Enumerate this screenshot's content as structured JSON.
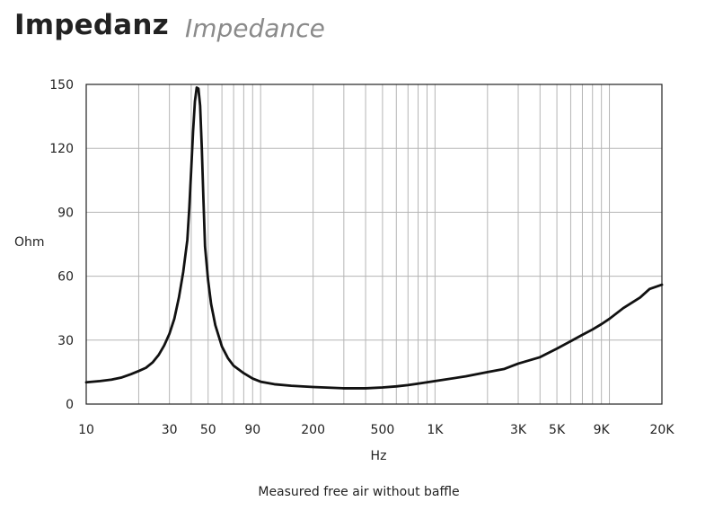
{
  "header": {
    "title": "Impedanz",
    "subtitle": "Impedance"
  },
  "caption": "Measured free air without baffle",
  "chart_data": {
    "type": "line",
    "title": "Impedanz",
    "subtitle": "Impedance",
    "xlabel": "Hz",
    "ylabel": "Ohm",
    "x_scale": "log",
    "xlim": [
      10,
      20000
    ],
    "ylim": [
      0,
      150
    ],
    "grid": true,
    "legend": "none",
    "x_ticks": [
      {
        "value": 10,
        "label": "10"
      },
      {
        "value": 30,
        "label": "30"
      },
      {
        "value": 50,
        "label": "50"
      },
      {
        "value": 90,
        "label": "90"
      },
      {
        "value": 200,
        "label": "200"
      },
      {
        "value": 500,
        "label": "500"
      },
      {
        "value": 1000,
        "label": "1K"
      },
      {
        "value": 3000,
        "label": "3K"
      },
      {
        "value": 5000,
        "label": "5K"
      },
      {
        "value": 9000,
        "label": "9K"
      },
      {
        "value": 20000,
        "label": "20K"
      }
    ],
    "y_ticks": [
      {
        "value": 0,
        "label": "0"
      },
      {
        "value": 30,
        "label": "30"
      },
      {
        "value": 60,
        "label": "60"
      },
      {
        "value": 90,
        "label": "90"
      },
      {
        "value": 120,
        "label": "120"
      },
      {
        "value": 150,
        "label": "150"
      }
    ],
    "grid_x": [
      10,
      20,
      30,
      40,
      50,
      60,
      70,
      80,
      90,
      100,
      200,
      300,
      400,
      500,
      600,
      700,
      800,
      900,
      1000,
      2000,
      3000,
      4000,
      5000,
      6000,
      7000,
      8000,
      9000,
      10000,
      20000
    ],
    "grid_y": [
      0,
      30,
      60,
      90,
      120,
      150
    ],
    "line_color": "#111111",
    "series": [
      {
        "values": [
          [
            10,
            10.2
          ],
          [
            12,
            10.8
          ],
          [
            14,
            11.5
          ],
          [
            16,
            12.5
          ],
          [
            18,
            14.0
          ],
          [
            20,
            15.5
          ],
          [
            22,
            17.0
          ],
          [
            24,
            19.5
          ],
          [
            26,
            23.0
          ],
          [
            28,
            27.5
          ],
          [
            30,
            33.0
          ],
          [
            32,
            40.0
          ],
          [
            34,
            50.0
          ],
          [
            36,
            62.0
          ],
          [
            38,
            77.0
          ],
          [
            39,
            92.0
          ],
          [
            40,
            110.0
          ],
          [
            41,
            128.0
          ],
          [
            42,
            142.0
          ],
          [
            43,
            148.5
          ],
          [
            44,
            148.0
          ],
          [
            45,
            140.0
          ],
          [
            46,
            120.0
          ],
          [
            47,
            96.0
          ],
          [
            48,
            74.0
          ],
          [
            50,
            58.0
          ],
          [
            52,
            47.0
          ],
          [
            55,
            37.0
          ],
          [
            60,
            27.0
          ],
          [
            65,
            21.5
          ],
          [
            70,
            18.0
          ],
          [
            80,
            14.5
          ],
          [
            90,
            12.0
          ],
          [
            100,
            10.5
          ],
          [
            120,
            9.3
          ],
          [
            150,
            8.6
          ],
          [
            200,
            8.0
          ],
          [
            300,
            7.4
          ],
          [
            400,
            7.4
          ],
          [
            500,
            7.8
          ],
          [
            600,
            8.3
          ],
          [
            700,
            8.9
          ],
          [
            800,
            9.6
          ],
          [
            1000,
            10.8
          ],
          [
            1500,
            13.0
          ],
          [
            2000,
            15.0
          ],
          [
            2500,
            16.5
          ],
          [
            3000,
            19.0
          ],
          [
            4000,
            22.0
          ],
          [
            5000,
            26.0
          ],
          [
            6000,
            29.5
          ],
          [
            7000,
            32.5
          ],
          [
            8000,
            35.0
          ],
          [
            9000,
            37.5
          ],
          [
            10000,
            40.0
          ],
          [
            12000,
            45.0
          ],
          [
            15000,
            50.0
          ],
          [
            17000,
            54.0
          ],
          [
            20000,
            56.0
          ]
        ]
      }
    ]
  }
}
